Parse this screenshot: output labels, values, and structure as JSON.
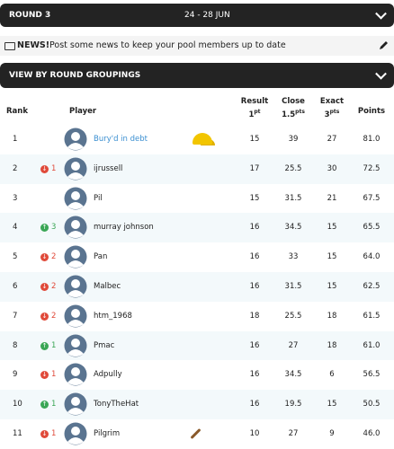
{
  "header": {
    "round": "ROUND 3",
    "dates": "24 - 28 JUN"
  },
  "news": {
    "label": "NEWS!",
    "text": "Post some news to keep your pool members up to date"
  },
  "groupings": "VIEW BY ROUND GROUPINGS",
  "table": {
    "columns": [
      {
        "label": "Rank"
      },
      {
        "label": "Player"
      },
      {
        "label": "Result",
        "sub": "1",
        "unit": "pt"
      },
      {
        "label": "Close",
        "sub": "1.5",
        "unit": "pts"
      },
      {
        "label": "Exact",
        "sub": "3",
        "unit": "pts"
      },
      {
        "label": "Points"
      }
    ],
    "rows": [
      {
        "rank": "1",
        "move": null,
        "player": "Bury'd in debt",
        "result": "15",
        "close": "39",
        "exact": "27",
        "points": "81.0",
        "badge": "cap"
      },
      {
        "rank": "2",
        "move": {
          "dir": "down",
          "n": "1"
        },
        "player": "ijrussell",
        "result": "17",
        "close": "25.5",
        "exact": "30",
        "points": "72.5"
      },
      {
        "rank": "3",
        "move": null,
        "player": "Pil",
        "result": "15",
        "close": "31.5",
        "exact": "21",
        "points": "67.5"
      },
      {
        "rank": "4",
        "move": {
          "dir": "up",
          "n": "3"
        },
        "player": "murray johnson",
        "result": "16",
        "close": "34.5",
        "exact": "15",
        "points": "65.5"
      },
      {
        "rank": "5",
        "move": {
          "dir": "down",
          "n": "2"
        },
        "player": "Pan",
        "result": "16",
        "close": "33",
        "exact": "15",
        "points": "64.0"
      },
      {
        "rank": "6",
        "move": {
          "dir": "down",
          "n": "2"
        },
        "player": "Malbec",
        "result": "16",
        "close": "31.5",
        "exact": "15",
        "points": "62.5"
      },
      {
        "rank": "7",
        "move": {
          "dir": "down",
          "n": "2"
        },
        "player": "htm_1968",
        "result": "18",
        "close": "25.5",
        "exact": "18",
        "points": "61.5"
      },
      {
        "rank": "8",
        "move": {
          "dir": "up",
          "n": "1"
        },
        "player": "Pmac",
        "result": "16",
        "close": "27",
        "exact": "18",
        "points": "61.0"
      },
      {
        "rank": "9",
        "move": {
          "dir": "down",
          "n": "1"
        },
        "player": "Adpully",
        "result": "16",
        "close": "34.5",
        "exact": "6",
        "points": "56.5"
      },
      {
        "rank": "10",
        "move": {
          "dir": "up",
          "n": "1"
        },
        "player": "TonyTheHat",
        "result": "16",
        "close": "19.5",
        "exact": "15",
        "points": "50.5"
      },
      {
        "rank": "11",
        "move": {
          "dir": "down",
          "n": "1"
        },
        "player": "Pilgrim",
        "result": "10",
        "close": "27",
        "exact": "9",
        "points": "46.0",
        "badge": "spoon"
      }
    ]
  }
}
